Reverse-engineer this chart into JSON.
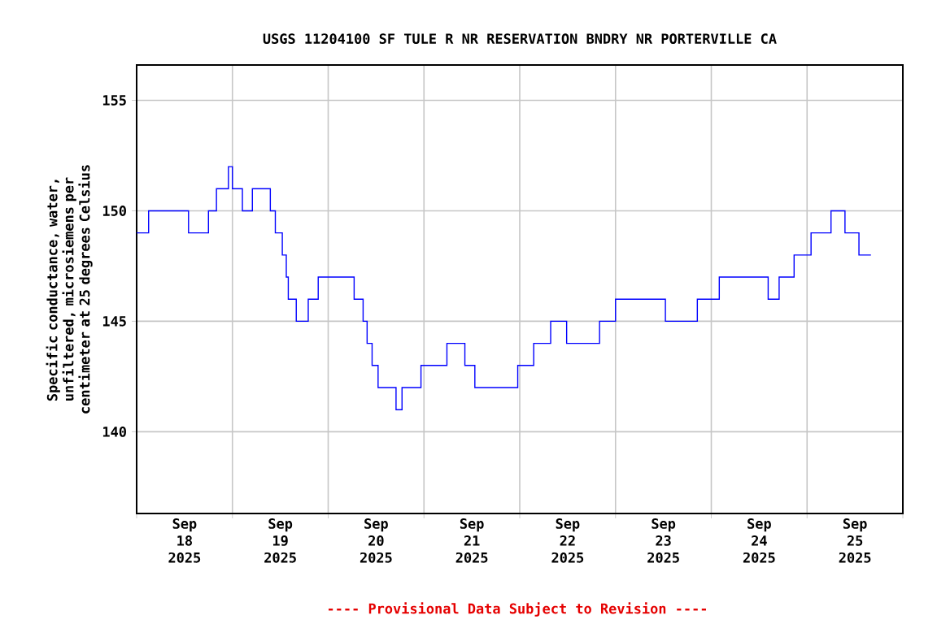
{
  "chart_data": {
    "type": "step",
    "title": "USGS 11204100 SF TULE R NR RESERVATION BNDRY NR PORTERVILLE CA",
    "ylabel": "Specific conductance, water, unfiltered, microsiemens per centimeter at 25 degrees Celsius",
    "annotations": [
      "---- Provisional Data Subject to Revision ----"
    ],
    "x": [
      "2025-09-18T00:00",
      "2025-09-18T03:00",
      "2025-09-18T13:00",
      "2025-09-18T18:00",
      "2025-09-18T20:00",
      "2025-09-18T23:00",
      "2025-09-19T00:00",
      "2025-09-19T02:30",
      "2025-09-19T05:00",
      "2025-09-19T09:30",
      "2025-09-19T10:45",
      "2025-09-19T12:30",
      "2025-09-19T13:30",
      "2025-09-19T14:00",
      "2025-09-19T16:00",
      "2025-09-19T19:00",
      "2025-09-19T21:30",
      "2025-09-20T06:30",
      "2025-09-20T08:45",
      "2025-09-20T09:45",
      "2025-09-20T11:00",
      "2025-09-20T12:30",
      "2025-09-20T17:00",
      "2025-09-20T18:30",
      "2025-09-20T23:15",
      "2025-09-21T05:45",
      "2025-09-21T10:15",
      "2025-09-21T12:45",
      "2025-09-21T23:30",
      "2025-09-22T03:30",
      "2025-09-22T07:45",
      "2025-09-22T11:45",
      "2025-09-22T20:00",
      "2025-09-23T00:00",
      "2025-09-23T12:30",
      "2025-09-23T20:30",
      "2025-09-24T02:00",
      "2025-09-24T14:15",
      "2025-09-24T17:00",
      "2025-09-24T20:45",
      "2025-09-25T01:00",
      "2025-09-25T06:00",
      "2025-09-25T09:30",
      "2025-09-25T13:00",
      "2025-09-25T16:00"
    ],
    "values": [
      149,
      150,
      149,
      150,
      151,
      152,
      151,
      150,
      151,
      150,
      149,
      148,
      147,
      146,
      145,
      146,
      147,
      146,
      145,
      144,
      143,
      142,
      141,
      142,
      143,
      144,
      143,
      142,
      143,
      144,
      145,
      144,
      145,
      146,
      145,
      146,
      147,
      146,
      147,
      148,
      149,
      150,
      149,
      148,
      148
    ],
    "color": "#0000ff",
    "line_style": "solid",
    "marker": "none",
    "grid": true,
    "xlim": [
      "2025-09-18T00:00",
      "2025-09-26T00:00"
    ],
    "xticks": [
      {
        "value": "2025-09-18T00:00",
        "label": null
      },
      {
        "value": "2025-09-18T12:00",
        "label": "Sep 18 2025"
      },
      {
        "value": "2025-09-19T00:00",
        "label": null
      },
      {
        "value": "2025-09-19T12:00",
        "label": "Sep 19 2025"
      },
      {
        "value": "2025-09-20T00:00",
        "label": null
      },
      {
        "value": "2025-09-20T12:00",
        "label": "Sep 20 2025"
      },
      {
        "value": "2025-09-21T00:00",
        "label": null
      },
      {
        "value": "2025-09-21T12:00",
        "label": "Sep 21 2025"
      },
      {
        "value": "2025-09-22T00:00",
        "label": null
      },
      {
        "value": "2025-09-22T12:00",
        "label": "Sep 22 2025"
      },
      {
        "value": "2025-09-23T00:00",
        "label": null
      },
      {
        "value": "2025-09-23T12:00",
        "label": "Sep 23 2025"
      },
      {
        "value": "2025-09-24T00:00",
        "label": null
      },
      {
        "value": "2025-09-24T12:00",
        "label": "Sep 24 2025"
      },
      {
        "value": "2025-09-25T00:00",
        "label": null
      },
      {
        "value": "2025-09-25T12:00",
        "label": "Sep 25 2025"
      },
      {
        "value": "2025-09-26T00:00",
        "label": null
      }
    ],
    "ylim": [
      136.3,
      156.6
    ],
    "yticks": [
      140,
      145,
      150,
      155
    ]
  }
}
